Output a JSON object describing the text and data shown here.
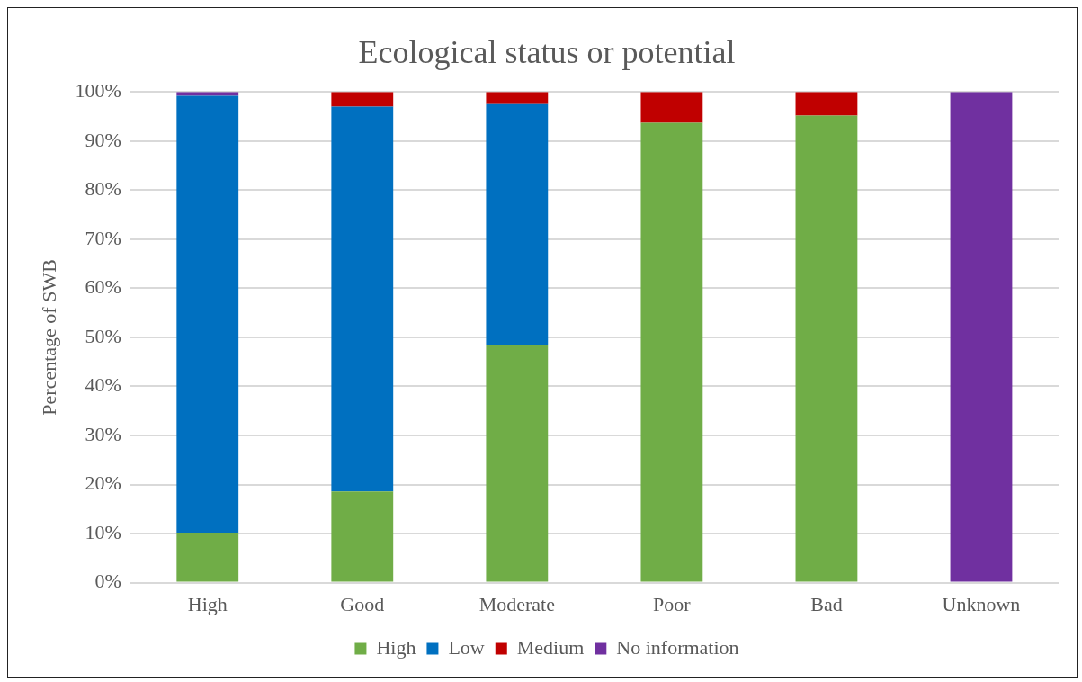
{
  "chart_data": {
    "type": "bar",
    "title": "Ecological status or potential",
    "ylabel": "Percentage of SWB",
    "categories": [
      "High",
      "Good",
      "Moderate",
      "Poor",
      "Bad",
      "Unknown"
    ],
    "stacked": true,
    "ylim": [
      0,
      100
    ],
    "yticks": [
      {
        "value": 0,
        "label": "0%"
      },
      {
        "value": 10,
        "label": "10%"
      },
      {
        "value": 20,
        "label": "20%"
      },
      {
        "value": 30,
        "label": "30%"
      },
      {
        "value": 40,
        "label": "40%"
      },
      {
        "value": 50,
        "label": "50%"
      },
      {
        "value": 60,
        "label": "60%"
      },
      {
        "value": 70,
        "label": "70%"
      },
      {
        "value": 80,
        "label": "80%"
      },
      {
        "value": 90,
        "label": "90%"
      },
      {
        "value": 100,
        "label": "100%"
      }
    ],
    "grid": "y",
    "legend": "bottom",
    "series": [
      {
        "name": "High",
        "color": "#70ad47",
        "values": [
          10.2,
          18.6,
          48.5,
          93.7,
          95.2,
          0
        ]
      },
      {
        "name": "Low",
        "color": "#0070c0",
        "values": [
          89,
          78.4,
          49,
          0,
          0,
          0
        ]
      },
      {
        "name": "Medium",
        "color": "#c00000",
        "values": [
          0,
          3,
          2.5,
          6.3,
          4.8,
          0
        ]
      },
      {
        "name": "No information",
        "color": "#7030a0",
        "values": [
          0.8,
          0,
          0,
          0,
          0,
          100
        ]
      }
    ]
  }
}
